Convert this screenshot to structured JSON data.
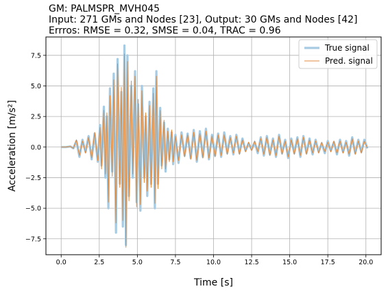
{
  "chart_data": {
    "type": "line",
    "title_lines": [
      "GM: PALMSPR_MVH045",
      "Input: 271 GMs and Nodes [23], Output: 30 GMs and Nodes [42]",
      "Errros: RMSE = 0.32, SMSE = 0.04, TRAC = 0.96"
    ],
    "xlabel": "Time [s]",
    "ylabel": "Acceleration [m/s²]",
    "xlim": [
      -1.0,
      21.0
    ],
    "ylim": [
      -8.8,
      9.0
    ],
    "x_ticks": [
      "0.0",
      "2.5",
      "5.0",
      "7.5",
      "10.0",
      "12.5",
      "15.0",
      "17.5",
      "20.0"
    ],
    "x_tick_values": [
      0,
      2.5,
      5,
      7.5,
      10,
      12.5,
      15,
      17.5,
      20
    ],
    "y_ticks": [
      "7.5",
      "5.0",
      "2.5",
      "0.0",
      "−2.5",
      "−5.0",
      "−7.5"
    ],
    "y_tick_values": [
      7.5,
      5.0,
      2.5,
      0.0,
      -2.5,
      -5.0,
      -7.5
    ],
    "grid": true,
    "legend_position": "top-right",
    "series": [
      {
        "name": "True signal",
        "color": "#a6cbe3",
        "x": [
          0.0,
          0.3,
          0.6,
          0.8,
          1.0,
          1.2,
          1.4,
          1.6,
          1.8,
          2.0,
          2.2,
          2.4,
          2.55,
          2.65,
          2.8,
          2.9,
          3.0,
          3.1,
          3.2,
          3.35,
          3.45,
          3.6,
          3.7,
          3.85,
          3.95,
          4.05,
          4.15,
          4.25,
          4.35,
          4.45,
          4.6,
          4.7,
          4.85,
          4.95,
          5.05,
          5.2,
          5.3,
          5.45,
          5.55,
          5.65,
          5.8,
          5.9,
          6.05,
          6.15,
          6.25,
          6.35,
          6.5,
          6.6,
          6.75,
          6.85,
          7.0,
          7.1,
          7.25,
          7.35,
          7.5,
          7.7,
          7.9,
          8.1,
          8.3,
          8.5,
          8.7,
          8.9,
          9.1,
          9.3,
          9.5,
          9.7,
          9.9,
          10.1,
          10.3,
          10.5,
          10.7,
          10.9,
          11.1,
          11.3,
          11.5,
          11.7,
          11.9,
          12.1,
          12.3,
          12.5,
          12.7,
          12.9,
          13.1,
          13.3,
          13.5,
          13.7,
          13.9,
          14.1,
          14.3,
          14.5,
          14.7,
          14.9,
          15.1,
          15.3,
          15.5,
          15.7,
          15.9,
          16.1,
          16.3,
          16.5,
          16.7,
          16.9,
          17.1,
          17.3,
          17.5,
          17.7,
          17.9,
          18.1,
          18.3,
          18.5,
          18.7,
          18.9,
          19.1,
          19.3,
          19.5,
          19.7,
          19.9,
          20.1
        ],
        "y": [
          0.0,
          0.0,
          0.05,
          -0.1,
          0.5,
          -0.8,
          0.6,
          -0.4,
          0.9,
          -1.0,
          1.1,
          -1.2,
          1.8,
          -1.5,
          3.3,
          -2.5,
          2.5,
          -5.0,
          4.8,
          -2.0,
          6.0,
          -7.0,
          7.2,
          -3.0,
          4.5,
          -6.5,
          8.3,
          -8.0,
          7.5,
          -4.0,
          5.0,
          -2.5,
          6.2,
          -4.5,
          3.5,
          -5.2,
          5.0,
          -2.5,
          2.5,
          -4.0,
          3.7,
          -3.0,
          4.8,
          -5.0,
          6.2,
          -3.0,
          3.2,
          -1.5,
          2.0,
          -2.0,
          1.5,
          -1.0,
          1.2,
          -1.4,
          1.0,
          -1.3,
          1.2,
          -0.7,
          1.1,
          -0.9,
          1.4,
          -1.2,
          1.3,
          -0.8,
          1.5,
          -1.0,
          1.0,
          -0.7,
          1.1,
          -0.8,
          1.2,
          -0.5,
          0.9,
          -0.6,
          1.0,
          -0.5,
          0.7,
          -0.3,
          0.3,
          -0.2,
          0.4,
          -0.5,
          0.8,
          -0.7,
          0.9,
          -0.6,
          0.7,
          -0.8,
          1.0,
          -0.5,
          0.6,
          -0.9,
          0.7,
          -0.5,
          0.8,
          -0.8,
          0.9,
          -0.5,
          0.7,
          -0.6,
          0.6,
          -0.4,
          0.3,
          -0.5,
          0.5,
          -0.3,
          0.4,
          -0.6,
          0.6,
          -0.4,
          0.5,
          -0.7,
          0.8,
          -0.5,
          0.6,
          -0.4,
          0.6,
          -0.1
        ]
      },
      {
        "name": "Pred. signal",
        "color": "#e08a3c",
        "x": [
          0.0,
          0.3,
          0.6,
          0.8,
          1.0,
          1.2,
          1.4,
          1.6,
          1.8,
          2.0,
          2.2,
          2.4,
          2.55,
          2.65,
          2.8,
          2.9,
          3.0,
          3.1,
          3.2,
          3.35,
          3.45,
          3.6,
          3.7,
          3.85,
          3.95,
          4.05,
          4.15,
          4.25,
          4.35,
          4.45,
          4.6,
          4.7,
          4.85,
          4.95,
          5.05,
          5.2,
          5.3,
          5.45,
          5.55,
          5.65,
          5.8,
          5.9,
          6.05,
          6.15,
          6.25,
          6.35,
          6.5,
          6.6,
          6.75,
          6.85,
          7.0,
          7.1,
          7.25,
          7.35,
          7.5,
          7.7,
          7.9,
          8.1,
          8.3,
          8.5,
          8.7,
          8.9,
          9.1,
          9.3,
          9.5,
          9.7,
          9.9,
          10.1,
          10.3,
          10.5,
          10.7,
          10.9,
          11.1,
          11.3,
          11.5,
          11.7,
          11.9,
          12.1,
          12.3,
          12.5,
          12.7,
          12.9,
          13.1,
          13.3,
          13.5,
          13.7,
          13.9,
          14.1,
          14.3,
          14.5,
          14.7,
          14.9,
          15.1,
          15.3,
          15.5,
          15.7,
          15.9,
          16.1,
          16.3,
          16.5,
          16.7,
          16.9,
          17.1,
          17.3,
          17.5,
          17.7,
          17.9,
          18.1,
          18.3,
          18.5,
          18.7,
          18.9,
          19.1,
          19.3,
          19.5,
          19.7,
          19.9,
          20.1
        ],
        "y": [
          0.0,
          0.0,
          0.05,
          -0.1,
          0.6,
          -0.7,
          0.5,
          -0.5,
          0.8,
          -0.9,
          1.2,
          -1.1,
          1.6,
          -1.8,
          3.0,
          -2.2,
          2.8,
          -4.5,
          4.2,
          -2.4,
          5.5,
          -6.2,
          6.8,
          -3.3,
          4.9,
          -6.0,
          7.6,
          -8.2,
          7.0,
          -4.4,
          5.4,
          -2.2,
          5.8,
          -4.9,
          3.9,
          -4.7,
          4.6,
          -2.9,
          2.8,
          -3.6,
          3.4,
          -3.3,
          4.4,
          -4.6,
          5.8,
          -3.4,
          3.0,
          -1.8,
          2.2,
          -1.8,
          1.3,
          -1.2,
          1.4,
          -1.2,
          0.9,
          -1.1,
          1.0,
          -0.8,
          1.0,
          -1.0,
          1.2,
          -1.1,
          1.1,
          -0.9,
          1.3,
          -0.9,
          0.9,
          -0.8,
          1.0,
          -0.7,
          1.0,
          -0.6,
          0.8,
          -0.5,
          0.9,
          -0.6,
          0.6,
          -0.4,
          0.4,
          -0.3,
          0.5,
          -0.4,
          0.7,
          -0.6,
          0.8,
          -0.7,
          0.6,
          -0.7,
          0.9,
          -0.6,
          0.5,
          -0.8,
          0.6,
          -0.6,
          0.7,
          -0.7,
          0.8,
          -0.6,
          0.6,
          -0.5,
          0.5,
          -0.5,
          0.4,
          -0.4,
          0.4,
          -0.4,
          0.5,
          -0.5,
          0.5,
          -0.5,
          0.4,
          -0.6,
          0.7,
          -0.6,
          0.5,
          -0.5,
          0.5,
          -0.1
        ]
      }
    ]
  }
}
